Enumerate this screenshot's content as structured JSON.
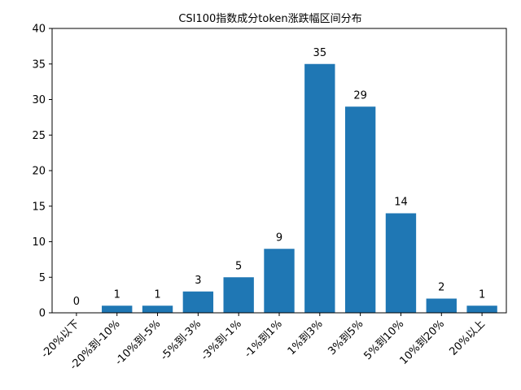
{
  "chart_data": {
    "type": "bar",
    "title": "CSI100指数成分token涨跌幅区间分布",
    "xlabel": "",
    "ylabel": "",
    "categories": [
      "-20%以下",
      "-20%到-10%",
      "-10%到-5%",
      "-5%到-3%",
      "-3%到-1%",
      "-1%到1%",
      "1%到3%",
      "3%到5%",
      "5%到10%",
      "10%到20%",
      "20%以上"
    ],
    "values": [
      0,
      1,
      1,
      3,
      5,
      9,
      35,
      29,
      14,
      2,
      1
    ],
    "ylim": [
      0,
      40
    ],
    "yticks": [
      0,
      5,
      10,
      15,
      20,
      25,
      30,
      35,
      40
    ],
    "bar_color": "#1f77b4",
    "grid": false,
    "legend": "none"
  }
}
